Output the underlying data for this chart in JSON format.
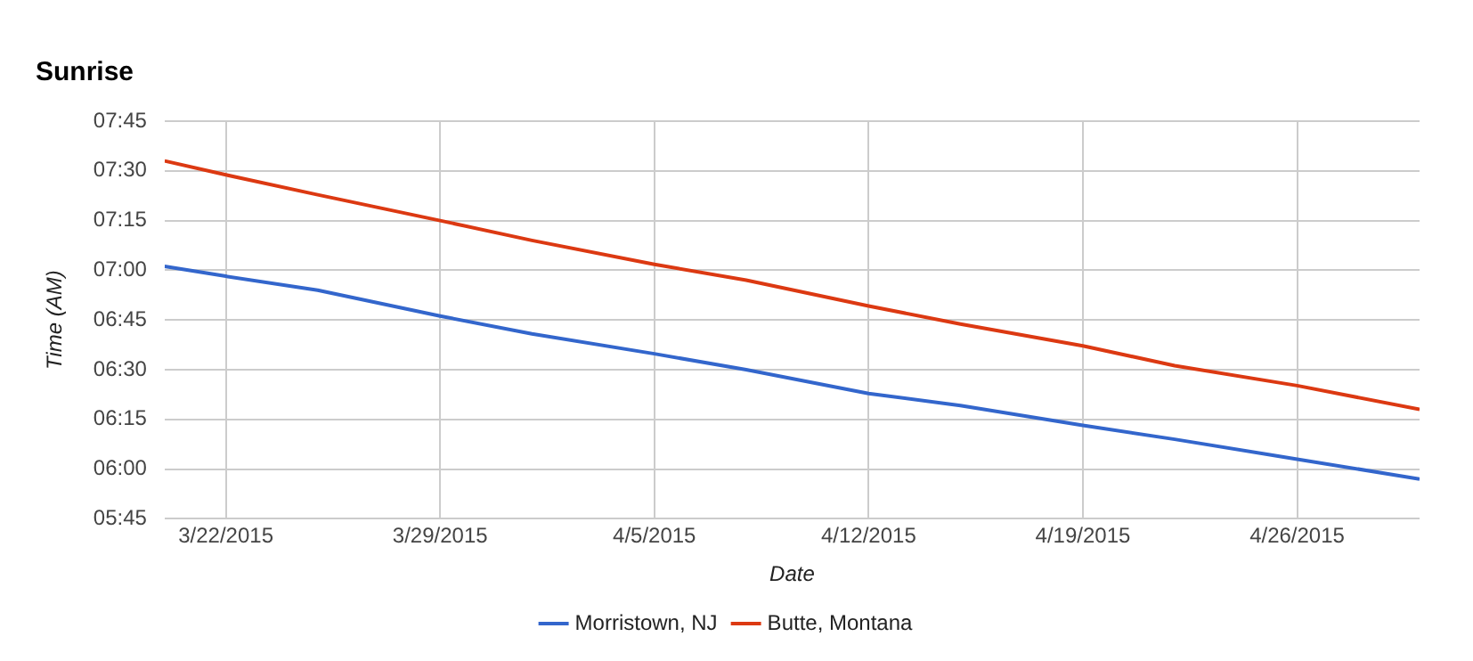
{
  "chart_data": {
    "type": "line",
    "title": "Sunrise",
    "xlabel": "Date",
    "ylabel": "Time (AM)",
    "x": [
      "2015-03-20",
      "2015-03-22",
      "2015-03-25",
      "2015-03-29",
      "2015-04-01",
      "2015-04-05",
      "2015-04-08",
      "2015-04-12",
      "2015-04-15",
      "2015-04-19",
      "2015-04-22",
      "2015-04-26",
      "2015-04-30"
    ],
    "series": [
      {
        "name": "Morristown, NJ",
        "color": "#3366cc",
        "values": [
          7.02,
          6.97,
          6.9,
          6.77,
          6.68,
          6.58,
          6.5,
          6.38,
          6.32,
          6.22,
          6.15,
          6.05,
          5.95
        ]
      },
      {
        "name": "Butte, Montana",
        "color": "#dc3912",
        "values": [
          7.55,
          7.48,
          7.38,
          7.25,
          7.15,
          7.03,
          6.95,
          6.82,
          6.73,
          6.62,
          6.52,
          6.42,
          6.3
        ]
      }
    ],
    "xlim": [
      "2015-03-20",
      "2015-04-30"
    ],
    "xticks": [
      {
        "value": "2015-03-22",
        "label": "3/22/2015"
      },
      {
        "value": "2015-03-29",
        "label": "3/29/2015"
      },
      {
        "value": "2015-04-05",
        "label": "4/5/2015"
      },
      {
        "value": "2015-04-12",
        "label": "4/12/2015"
      },
      {
        "value": "2015-04-19",
        "label": "4/19/2015"
      },
      {
        "value": "2015-04-26",
        "label": "4/26/2015"
      }
    ],
    "ylim": [
      5.75,
      7.75
    ],
    "yticks": [
      {
        "value": 5.75,
        "label": "05:45"
      },
      {
        "value": 6,
        "label": "06:00"
      },
      {
        "value": 6.25,
        "label": "06:15"
      },
      {
        "value": 6.5,
        "label": "06:30"
      },
      {
        "value": 6.75,
        "label": "06:45"
      },
      {
        "value": 7,
        "label": "07:00"
      },
      {
        "value": 7.25,
        "label": "07:15"
      },
      {
        "value": 7.5,
        "label": "07:30"
      },
      {
        "value": 7.75,
        "label": "07:45"
      }
    ],
    "grid": true,
    "legend": "bottom",
    "marker": "none",
    "line_style": "solid"
  }
}
